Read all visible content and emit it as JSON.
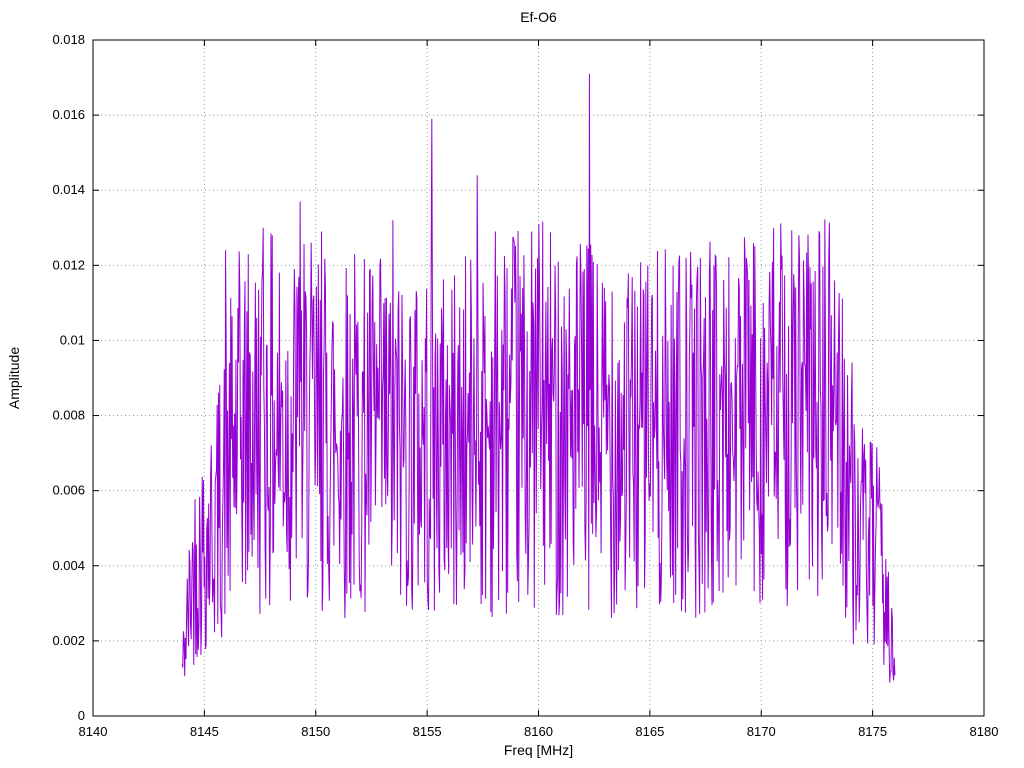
{
  "chart": {
    "title": "Ef-O6",
    "x_axis": {
      "label": "Freq [MHz]",
      "min": 8140,
      "max": 8180,
      "ticks": [
        8140,
        8145,
        8150,
        8155,
        8160,
        8165,
        8170,
        8175,
        8180
      ],
      "tick_labels": [
        "8140",
        "8145",
        "8150",
        "8155",
        "8160",
        "8165",
        "8170",
        "8175",
        "8180"
      ]
    },
    "y_axis": {
      "label": "Amplitude",
      "min": 0,
      "max": 0.018,
      "ticks": [
        0,
        0.002,
        0.004,
        0.006,
        0.008,
        0.01,
        0.012,
        0.014,
        0.016,
        0.018
      ],
      "tick_labels": [
        "0",
        "0.002",
        "0.004",
        "0.006",
        "0.008",
        "0.01",
        "0.012",
        "0.014",
        "0.016",
        "0.018"
      ]
    },
    "line_color": "#9400d3",
    "grid_color": "#9a9a9a",
    "frame_color": "#000000",
    "background": "#ffffff"
  },
  "chart_data": {
    "type": "line",
    "title": "Ef-O6",
    "xlabel": "Freq [MHz]",
    "ylabel": "Amplitude",
    "xlim": [
      8140,
      8180
    ],
    "ylim": [
      0,
      0.018
    ],
    "grid": "dotted",
    "legend": "none",
    "signal_x_range": [
      8144.0,
      8176.0
    ],
    "typical_amplitude_band": [
      0.002,
      0.012
    ],
    "n_points": 1100,
    "seed": 42,
    "noise_multiplier_range": [
      0.35,
      1.7
    ],
    "envelope": [
      [
        8144.0,
        0.0012
      ],
      [
        8144.5,
        0.0038
      ],
      [
        8145.5,
        0.005
      ],
      [
        8146.5,
        0.0073
      ],
      [
        8148.0,
        0.0076
      ],
      [
        8152.0,
        0.0073
      ],
      [
        8156.0,
        0.0071
      ],
      [
        8160.0,
        0.0078
      ],
      [
        8164.0,
        0.0072
      ],
      [
        8168.0,
        0.0075
      ],
      [
        8171.0,
        0.0078
      ],
      [
        8173.5,
        0.0078
      ],
      [
        8174.3,
        0.0048
      ],
      [
        8175.2,
        0.0042
      ],
      [
        8175.7,
        0.0028
      ],
      [
        8176.0,
        0.0008
      ]
    ],
    "notable_peaks": [
      {
        "x": 8145.95,
        "y": 0.0124
      },
      {
        "x": 8147.65,
        "y": 0.013
      },
      {
        "x": 8149.3,
        "y": 0.0137
      },
      {
        "x": 8150.25,
        "y": 0.0129
      },
      {
        "x": 8151.75,
        "y": 0.0123
      },
      {
        "x": 8153.45,
        "y": 0.0132
      },
      {
        "x": 8155.2,
        "y": 0.0159
      },
      {
        "x": 8157.25,
        "y": 0.0144
      },
      {
        "x": 8158.05,
        "y": 0.0129
      },
      {
        "x": 8160.0,
        "y": 0.0131
      },
      {
        "x": 8162.3,
        "y": 0.0171
      },
      {
        "x": 8163.3,
        "y": 0.0113
      },
      {
        "x": 8164.9,
        "y": 0.012
      },
      {
        "x": 8166.3,
        "y": 0.0121
      },
      {
        "x": 8168.0,
        "y": 0.0113
      },
      {
        "x": 8169.4,
        "y": 0.0117
      },
      {
        "x": 8170.5,
        "y": 0.0121
      },
      {
        "x": 8171.7,
        "y": 0.0128
      },
      {
        "x": 8173.3,
        "y": 0.0116
      }
    ]
  }
}
